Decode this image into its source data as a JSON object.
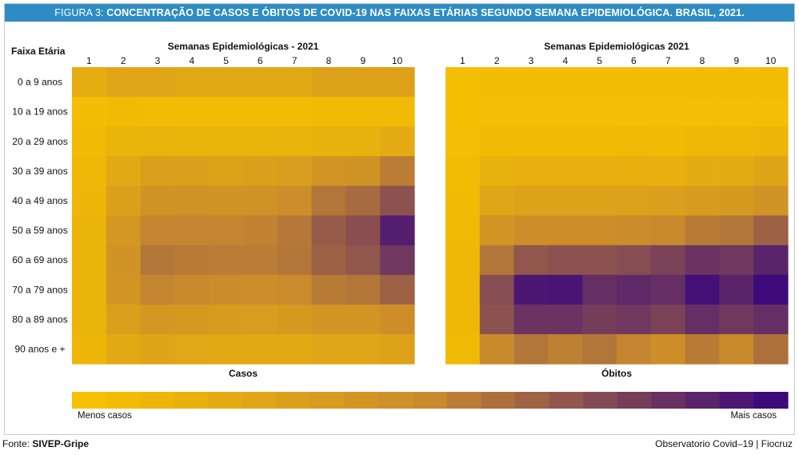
{
  "title_lead": "FIGURA 3:",
  "title_rest": "CONCENTRAÇÃO DE CASOS E ÓBITOS DE COVID-19 NAS FAIXAS ETÁRIAS SEGUNDO SEMANA EPIDEMIOLÓGICA. BRASIL, 2021.",
  "row_header": "Faixa Etária",
  "source_label": "Fonte:",
  "source_value": "SIVEP-Gripe",
  "credit": "Observatorio Covid–19 | Fiocruz",
  "legend": {
    "low": "Menos casos",
    "high": "Mais casos"
  },
  "colors": {
    "low": "#f6c100",
    "mid": "#c98a2d",
    "high": "#3e0a7a",
    "title_bar": "#2e8cc4"
  },
  "chart_data": [
    {
      "type": "heatmap",
      "title": "Semanas Epidemiológicas - 2021",
      "xlabel": "Casos",
      "x": [
        "1",
        "2",
        "3",
        "4",
        "5",
        "6",
        "7",
        "8",
        "9",
        "10"
      ],
      "y": [
        "0 a 9 anos",
        "10 a 19 anos",
        "20 a 29 anos",
        "30 a 39 anos",
        "40 a 49 anos",
        "50 a 59 anos",
        "60 a 69 anos",
        "70 a 79 anos",
        "80 a 89 anos",
        "90 anos e +"
      ],
      "values": [
        [
          0.18,
          0.25,
          0.25,
          0.23,
          0.23,
          0.23,
          0.23,
          0.28,
          0.28,
          0.28
        ],
        [
          0.04,
          0.06,
          0.05,
          0.05,
          0.05,
          0.05,
          0.05,
          0.06,
          0.06,
          0.06
        ],
        [
          0.06,
          0.12,
          0.13,
          0.12,
          0.12,
          0.12,
          0.13,
          0.15,
          0.15,
          0.2
        ],
        [
          0.08,
          0.22,
          0.3,
          0.3,
          0.28,
          0.3,
          0.33,
          0.4,
          0.42,
          0.55
        ],
        [
          0.1,
          0.3,
          0.42,
          0.43,
          0.42,
          0.43,
          0.47,
          0.58,
          0.62,
          0.72
        ],
        [
          0.12,
          0.38,
          0.52,
          0.52,
          0.52,
          0.53,
          0.57,
          0.68,
          0.73,
          0.92
        ],
        [
          0.12,
          0.42,
          0.58,
          0.56,
          0.55,
          0.55,
          0.58,
          0.66,
          0.7,
          0.82
        ],
        [
          0.12,
          0.4,
          0.52,
          0.5,
          0.48,
          0.47,
          0.49,
          0.56,
          0.58,
          0.66
        ],
        [
          0.12,
          0.3,
          0.38,
          0.36,
          0.34,
          0.33,
          0.36,
          0.4,
          0.4,
          0.46
        ],
        [
          0.1,
          0.22,
          0.26,
          0.24,
          0.22,
          0.22,
          0.22,
          0.25,
          0.25,
          0.28
        ]
      ]
    },
    {
      "type": "heatmap",
      "title": "Semanas Epidemiológicas 2021",
      "xlabel": "Óbitos",
      "x": [
        "1",
        "2",
        "3",
        "4",
        "5",
        "6",
        "7",
        "8",
        "9",
        "10"
      ],
      "y": [
        "0 a 9 anos",
        "10 a 19 anos",
        "20 a 29 anos",
        "30 a 39 anos",
        "40 a 49 anos",
        "50 a 59 anos",
        "60 a 69 anos",
        "70 a 79 anos",
        "80 a 89 anos",
        "90 anos e +"
      ],
      "values": [
        [
          0.02,
          0.04,
          0.04,
          0.04,
          0.04,
          0.04,
          0.04,
          0.05,
          0.05,
          0.05
        ],
        [
          0.02,
          0.03,
          0.03,
          0.03,
          0.03,
          0.03,
          0.03,
          0.03,
          0.03,
          0.03
        ],
        [
          0.03,
          0.06,
          0.06,
          0.06,
          0.06,
          0.07,
          0.06,
          0.08,
          0.08,
          0.1
        ],
        [
          0.05,
          0.15,
          0.16,
          0.16,
          0.16,
          0.16,
          0.16,
          0.2,
          0.2,
          0.26
        ],
        [
          0.06,
          0.25,
          0.28,
          0.28,
          0.28,
          0.29,
          0.31,
          0.35,
          0.36,
          0.42
        ],
        [
          0.07,
          0.4,
          0.46,
          0.46,
          0.46,
          0.48,
          0.5,
          0.56,
          0.58,
          0.66
        ],
        [
          0.08,
          0.58,
          0.7,
          0.72,
          0.72,
          0.74,
          0.78,
          0.84,
          0.82,
          0.9
        ],
        [
          0.08,
          0.74,
          0.95,
          0.96,
          0.86,
          0.88,
          0.86,
          0.98,
          0.9,
          1.0
        ],
        [
          0.08,
          0.72,
          0.84,
          0.84,
          0.8,
          0.82,
          0.78,
          0.86,
          0.82,
          0.86
        ],
        [
          0.07,
          0.5,
          0.58,
          0.54,
          0.58,
          0.52,
          0.46,
          0.56,
          0.5,
          0.6
        ]
      ]
    }
  ]
}
